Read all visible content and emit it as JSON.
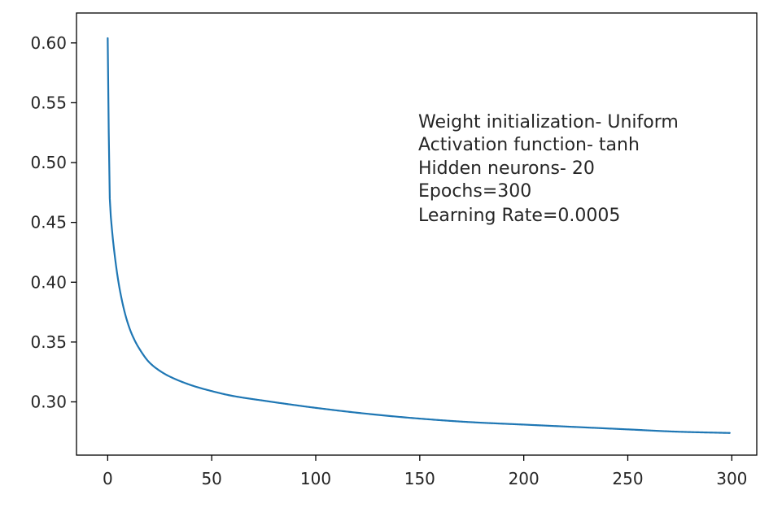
{
  "chart_data": {
    "type": "line",
    "title": "",
    "xlabel": "",
    "ylabel": "",
    "xlim": [
      -15,
      312
    ],
    "ylim": [
      0.2555,
      0.625
    ],
    "grid": false,
    "legend": null,
    "x_ticks": [
      0,
      50,
      100,
      150,
      200,
      250,
      300
    ],
    "y_ticks": [
      0.3,
      0.35,
      0.4,
      0.45,
      0.5,
      0.55,
      0.6
    ],
    "x_tick_labels": [
      "0",
      "50",
      "100",
      "150",
      "200",
      "250",
      "300"
    ],
    "y_tick_labels": [
      "0.30",
      "0.35",
      "0.40",
      "0.45",
      "0.50",
      "0.55",
      "0.60"
    ],
    "annotation": [
      "Weight initialization- Uniform",
      "Activation function- tanh",
      "Hidden neurons- 20",
      "Epochs=300",
      "Learning Rate=0.0005"
    ],
    "series": [
      {
        "color": "#1f77b4",
        "x": [
          0,
          1,
          2,
          3,
          4,
          5,
          6,
          8,
          10,
          12,
          15,
          20,
          25,
          30,
          40,
          50,
          60,
          75,
          100,
          125,
          150,
          175,
          200,
          225,
          250,
          275,
          299
        ],
        "y": [
          0.604,
          0.47,
          0.445,
          0.428,
          0.414,
          0.402,
          0.392,
          0.376,
          0.364,
          0.355,
          0.345,
          0.333,
          0.326,
          0.321,
          0.314,
          0.309,
          0.305,
          0.301,
          0.295,
          0.29,
          0.286,
          0.283,
          0.281,
          0.279,
          0.277,
          0.275,
          0.274
        ]
      }
    ]
  }
}
